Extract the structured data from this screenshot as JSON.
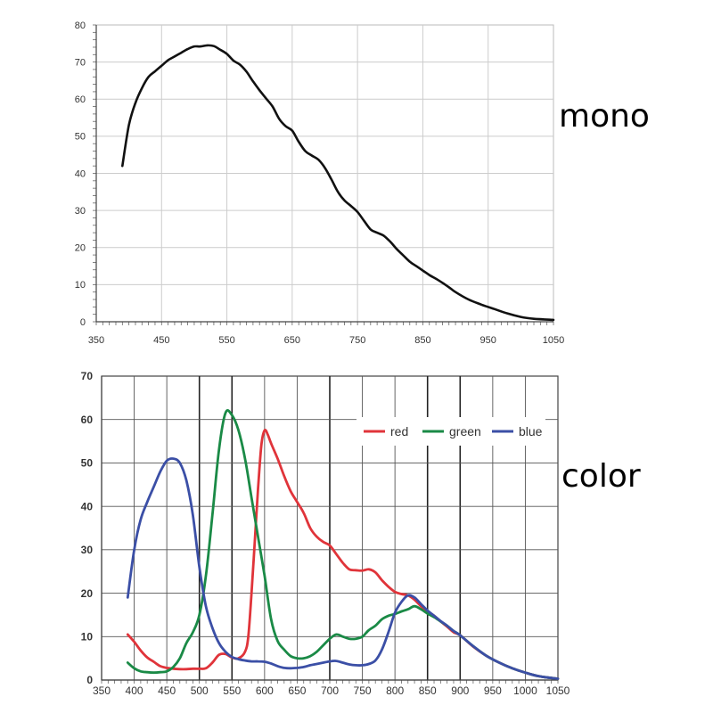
{
  "chart_data": [
    {
      "type": "line",
      "label": "mono",
      "xlim": [
        350,
        1050
      ],
      "ylim": [
        0,
        80
      ],
      "xticks": [
        "350",
        "450",
        "550",
        "650",
        "750",
        "850",
        "950",
        "1050"
      ],
      "yticks": [
        "0",
        "10",
        "20",
        "30",
        "40",
        "50",
        "60",
        "70",
        "80"
      ],
      "grid": true,
      "series": [
        {
          "color": "#111111",
          "x": [
            390,
            400,
            410,
            420,
            430,
            440,
            450,
            460,
            470,
            480,
            490,
            500,
            510,
            520,
            530,
            540,
            550,
            560,
            570,
            580,
            590,
            600,
            610,
            620,
            630,
            640,
            650,
            660,
            670,
            680,
            690,
            700,
            710,
            720,
            730,
            740,
            750,
            760,
            770,
            780,
            790,
            800,
            810,
            820,
            830,
            840,
            850,
            860,
            870,
            880,
            890,
            900,
            920,
            940,
            960,
            980,
            1000,
            1020,
            1050
          ],
          "y": [
            42,
            53,
            59,
            63,
            66,
            67.5,
            69,
            70.5,
            71.5,
            72.5,
            73.5,
            74.2,
            74.2,
            74.5,
            74.3,
            73.3,
            72.2,
            70.4,
            69.3,
            67.4,
            64.8,
            62.4,
            60.2,
            58,
            54.7,
            52.7,
            51.5,
            48.5,
            46,
            44.8,
            43.7,
            41.5,
            38.4,
            35,
            32.7,
            31.2,
            29.6,
            27.2,
            24.9,
            24,
            23.2,
            21.6,
            19.6,
            17.9,
            16.2,
            15,
            13.8,
            12.6,
            11.6,
            10.5,
            9.3,
            8,
            6,
            4.6,
            3.4,
            2.2,
            1.3,
            0.8,
            0.5
          ]
        }
      ]
    },
    {
      "type": "line",
      "label": "color",
      "xlim": [
        350,
        1050
      ],
      "ylim": [
        0,
        70
      ],
      "xticks": [
        "350",
        "400",
        "450",
        "500",
        "550",
        "600",
        "650",
        "700",
        "750",
        "800",
        "850",
        "900",
        "950",
        "1000",
        "1050"
      ],
      "yticks": [
        "0",
        "10",
        "20",
        "30",
        "40",
        "50",
        "60",
        "70"
      ],
      "grid": true,
      "legend_position": "top-right",
      "series": [
        {
          "name": "red",
          "color": "#e0343a",
          "x": [
            390,
            400,
            410,
            420,
            430,
            440,
            450,
            460,
            470,
            480,
            490,
            500,
            510,
            520,
            530,
            540,
            550,
            560,
            570,
            575,
            580,
            585,
            590,
            595,
            600,
            605,
            610,
            620,
            630,
            640,
            650,
            660,
            670,
            680,
            690,
            700,
            710,
            720,
            730,
            740,
            750,
            760,
            770,
            780,
            790,
            800,
            810,
            820,
            830,
            840,
            850,
            860,
            870,
            880,
            890,
            900,
            920,
            940,
            960,
            980,
            1000,
            1020,
            1050
          ],
          "y": [
            10.5,
            8.8,
            6.8,
            5.2,
            4.2,
            3.2,
            2.8,
            2.6,
            2.5,
            2.5,
            2.6,
            2.6,
            2.7,
            4,
            5.8,
            6,
            5.2,
            5,
            6.5,
            10,
            20,
            32,
            44,
            54,
            57.5,
            56.5,
            54.5,
            51,
            47,
            43.5,
            41,
            38.5,
            35,
            33,
            31.8,
            31,
            29,
            27,
            25.5,
            25.3,
            25.2,
            25.5,
            24.8,
            23,
            21.5,
            20.3,
            19.8,
            19.5,
            18.5,
            17,
            15.8,
            14.8,
            13.5,
            12.3,
            11,
            10.3,
            7.7,
            5.6,
            4,
            2.7,
            1.7,
            0.9,
            0.3
          ]
        },
        {
          "name": "green",
          "color": "#1a8a46",
          "x": [
            390,
            400,
            410,
            420,
            430,
            440,
            450,
            460,
            470,
            480,
            490,
            500,
            510,
            520,
            530,
            540,
            550,
            560,
            570,
            580,
            590,
            600,
            610,
            620,
            630,
            640,
            650,
            660,
            670,
            680,
            690,
            700,
            710,
            720,
            730,
            740,
            750,
            760,
            770,
            780,
            790,
            800,
            810,
            820,
            830,
            840,
            850,
            860,
            870,
            880,
            890,
            900,
            920,
            940,
            960,
            980,
            1000,
            1020,
            1050
          ],
          "y": [
            4,
            2.7,
            2,
            1.8,
            1.7,
            1.8,
            2,
            3,
            5,
            8.5,
            11,
            15,
            24,
            38,
            53,
            61.5,
            61,
            57.5,
            51,
            42,
            33,
            24,
            14,
            9,
            7,
            5.5,
            5,
            5,
            5.5,
            6.5,
            8,
            9.5,
            10.5,
            10,
            9.5,
            9.5,
            10,
            11.5,
            12.5,
            14,
            14.8,
            15.2,
            15.8,
            16.3,
            17,
            16.3,
            15.3,
            14.5,
            13.5,
            12.5,
            11.3,
            10.3,
            7.8,
            5.6,
            4,
            2.7,
            1.7,
            0.9,
            0.3
          ]
        },
        {
          "name": "blue",
          "color": "#3b4fa6",
          "x": [
            390,
            400,
            410,
            420,
            430,
            440,
            450,
            460,
            470,
            480,
            490,
            500,
            510,
            520,
            530,
            540,
            550,
            560,
            570,
            580,
            590,
            600,
            610,
            620,
            630,
            640,
            650,
            660,
            670,
            680,
            690,
            700,
            710,
            720,
            730,
            740,
            750,
            760,
            770,
            780,
            790,
            800,
            810,
            820,
            830,
            840,
            850,
            860,
            870,
            880,
            890,
            900,
            920,
            940,
            960,
            980,
            1000,
            1020,
            1050
          ],
          "y": [
            19,
            30,
            37,
            41,
            44.5,
            48,
            50.5,
            51,
            50,
            46,
            38,
            26,
            17,
            12,
            8.5,
            6.5,
            5.3,
            4.8,
            4.5,
            4.3,
            4.3,
            4.2,
            3.8,
            3.2,
            2.8,
            2.7,
            2.8,
            3,
            3.4,
            3.7,
            4,
            4.3,
            4.4,
            4,
            3.6,
            3.4,
            3.4,
            3.7,
            4.5,
            7,
            11,
            15.5,
            18,
            19.5,
            19,
            17.5,
            16,
            14.8,
            13.6,
            12.5,
            11.3,
            10.3,
            7.8,
            5.6,
            4,
            2.7,
            1.7,
            0.9,
            0.3
          ]
        }
      ]
    }
  ],
  "labels": {
    "mono": "mono",
    "color": "color"
  }
}
